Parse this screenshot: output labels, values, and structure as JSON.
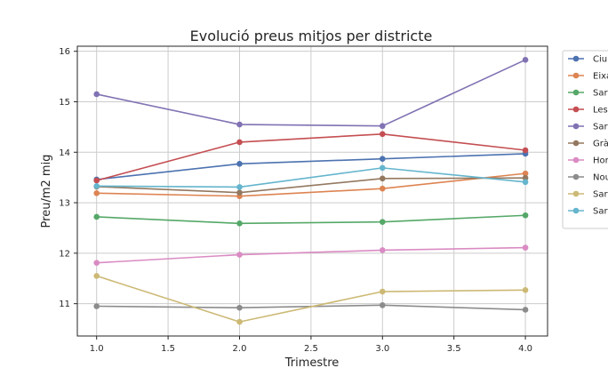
{
  "chart_data": {
    "type": "line",
    "title": "Evolució preus mitjos per districte",
    "xlabel": "Trimestre",
    "ylabel": "Preu/m2 mig",
    "x": [
      1.0,
      2.0,
      3.0,
      4.0
    ],
    "xlim": [
      0.865,
      4.155
    ],
    "ylim": [
      10.36,
      16.1
    ],
    "xticks": [
      "1.0",
      "1.5",
      "2.0",
      "2.5",
      "3.0",
      "3.5",
      "4.0"
    ],
    "yticks": [
      "11",
      "12",
      "13",
      "14",
      "15",
      "16"
    ],
    "grid": true,
    "legend_position": "right, clipped at image edge",
    "series": [
      {
        "name": "Ciu",
        "color": "#4c72b0",
        "values": [
          13.46,
          13.77,
          13.87,
          13.97
        ]
      },
      {
        "name": "Eixa",
        "color": "#dd8452",
        "values": [
          13.19,
          13.13,
          13.28,
          13.58
        ]
      },
      {
        "name": "Sar",
        "color": "#55a868",
        "values": [
          12.72,
          12.59,
          12.62,
          12.75
        ]
      },
      {
        "name": "Les",
        "color": "#c44e52",
        "values": [
          13.44,
          14.2,
          14.36,
          14.04
        ]
      },
      {
        "name": "Sar",
        "color": "#8172b3",
        "values": [
          15.15,
          14.55,
          14.52,
          15.83
        ]
      },
      {
        "name": "Grà",
        "color": "#937860",
        "values": [
          13.32,
          13.2,
          13.48,
          13.49
        ]
      },
      {
        "name": "Hor",
        "color": "#da8bc3",
        "values": [
          11.81,
          11.97,
          12.06,
          12.11
        ]
      },
      {
        "name": "Nou",
        "color": "#8c8c8c",
        "values": [
          10.95,
          10.92,
          10.97,
          10.88
        ]
      },
      {
        "name": "Sar",
        "color": "#ccb974",
        "values": [
          11.55,
          10.64,
          11.24,
          11.27
        ]
      },
      {
        "name": "Sar",
        "color": "#64b5cd",
        "values": [
          13.33,
          13.31,
          13.69,
          13.41
        ]
      }
    ]
  }
}
